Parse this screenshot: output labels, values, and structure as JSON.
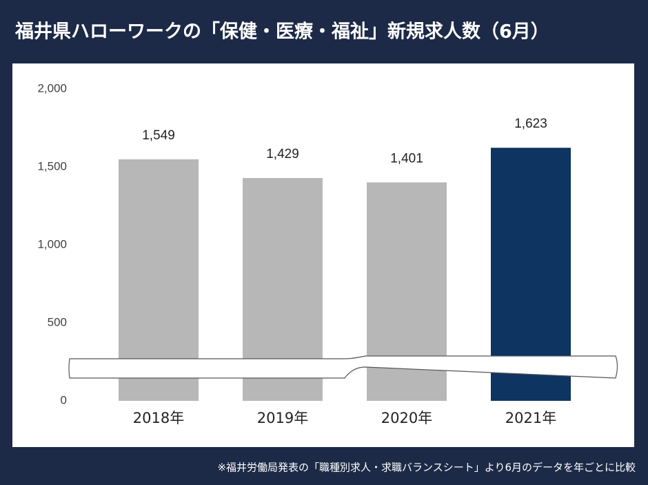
{
  "chart_data": {
    "type": "bar",
    "title": "福井県ハローワークの「保健・医療・福祉」新規求人数（6月）",
    "note": "※福井労働局発表の「職種別求人・求職バランスシート」より6月のデータを年ごとに比較",
    "categories": [
      "2018年",
      "2019年",
      "2020年",
      "2021年"
    ],
    "values": [
      1549,
      1429,
      1401,
      1623
    ],
    "value_labels": [
      "1,549",
      "1,429",
      "1,401",
      "1,623"
    ],
    "colors": [
      "#b7b7b7",
      "#b7b7b7",
      "#b7b7b7",
      "#0e3461"
    ],
    "ylim": [
      0,
      2000
    ],
    "yticks": [
      0,
      500,
      {
        "value": 1000,
        "label": "1,000"
      },
      {
        "value": 1500,
        "label": "1,500"
      },
      {
        "value": 2000,
        "label": "2,000"
      }
    ],
    "grid": false
  }
}
